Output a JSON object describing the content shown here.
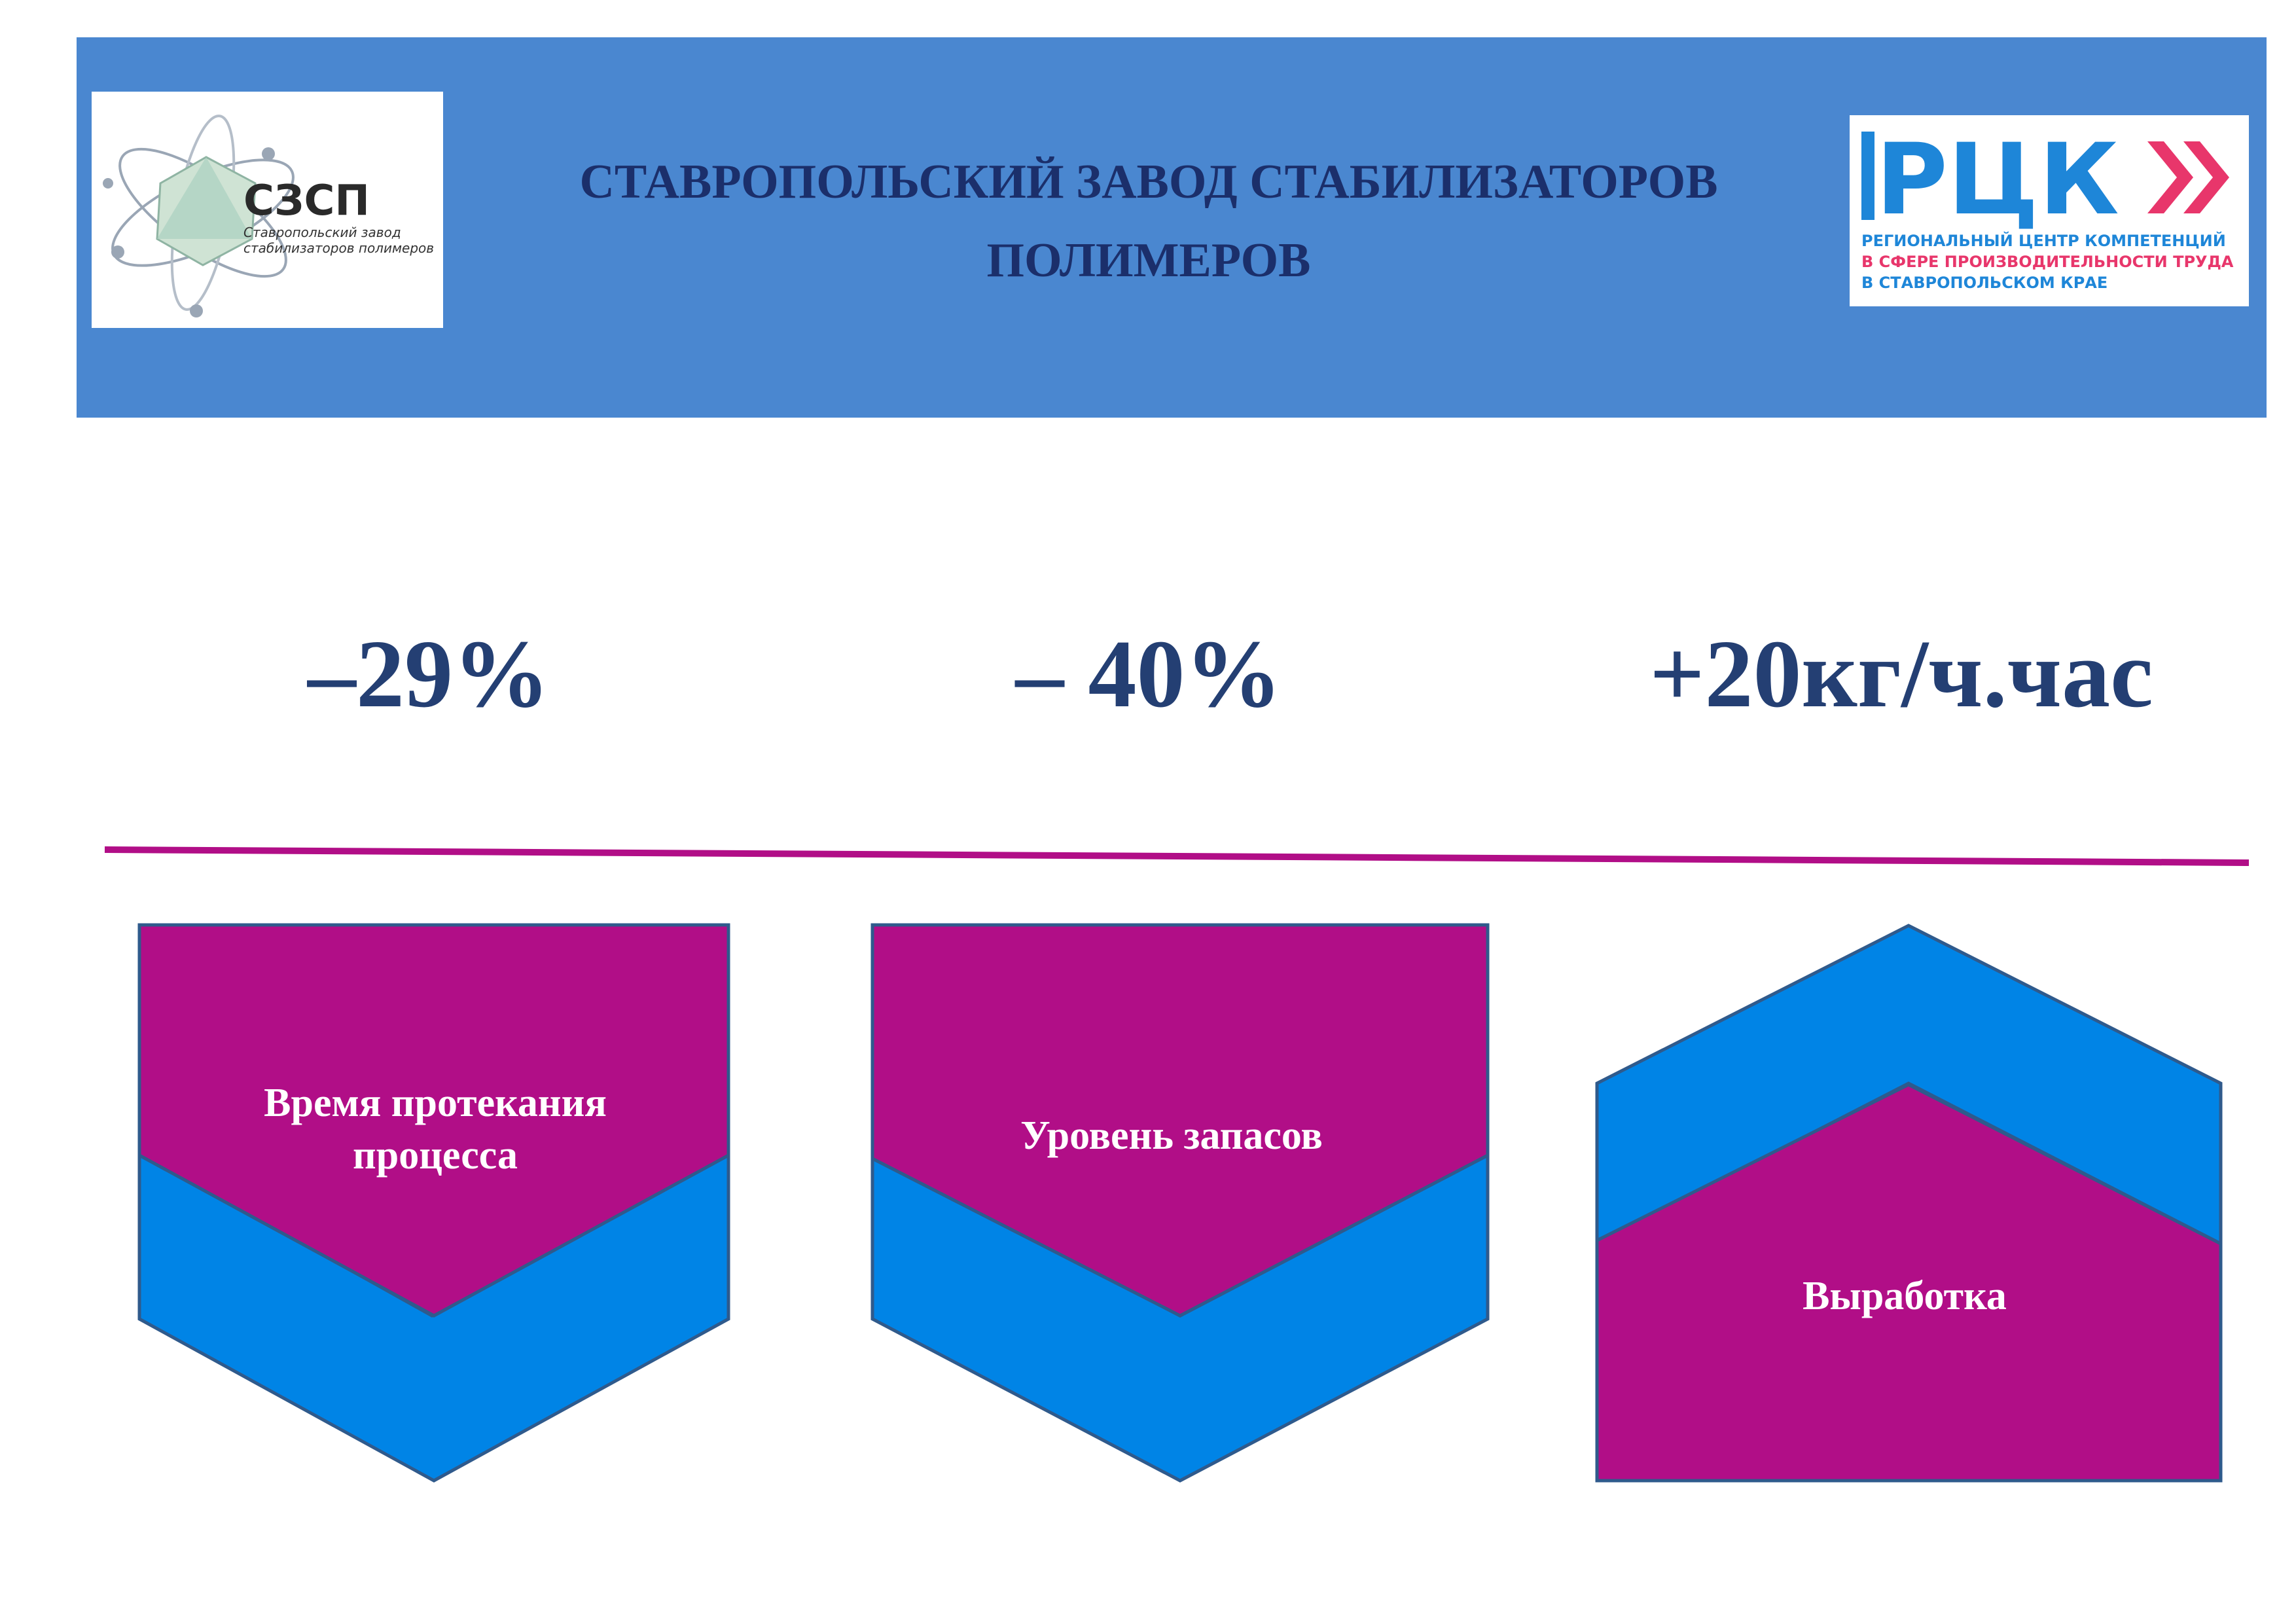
{
  "header": {
    "title_line1": "СТАВРОПОЛЬСКИЙ ЗАВОД СТАБИЛИЗАТОРОВ",
    "title_line2": "ПОЛИМЕРОВ",
    "background_color": "#4a87d0",
    "title_color": "#1b2f6b"
  },
  "logo_left": {
    "abbr": "СЗСП",
    "line1": "Ставропольский завод",
    "line2": "стабилизаторов полимеров"
  },
  "logo_right": {
    "abbr": "РЦК",
    "line1": "РЕГИОНАЛЬНЫЙ ЦЕНТР КОМПЕТЕНЦИЙ",
    "line2": "В СФЕРЕ ПРОИЗВОДИТЕЛЬНОСТИ ТРУДА",
    "line3": "В СТАВРОПОЛЬСКОМ КРАЕ"
  },
  "metrics": [
    {
      "value": "–29%"
    },
    {
      "value": "– 40%"
    },
    {
      "value": "+20кг/ч.час"
    }
  ],
  "cards": [
    {
      "label_line1": "Время протекания",
      "label_line2": "процесса",
      "direction": "down-arrow-icon"
    },
    {
      "label_line1": "Уровень запасов",
      "direction": "down-arrow-icon"
    },
    {
      "label_line1": "Выработка",
      "direction": "up-arrow-icon"
    }
  ],
  "colors": {
    "magenta": "#b10e87",
    "blue": "#0084e6",
    "metric_text": "#243f73",
    "outline": "#2f5a8c"
  }
}
